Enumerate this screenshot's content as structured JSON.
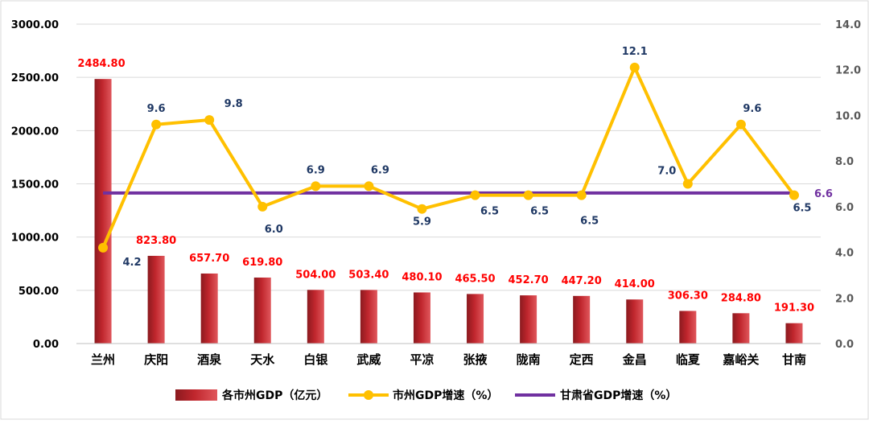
{
  "chart_data": {
    "type": "bar",
    "categories": [
      "兰州",
      "庆阳",
      "酒泉",
      "天水",
      "白银",
      "武威",
      "平凉",
      "张掖",
      "陇南",
      "定西",
      "金昌",
      "临夏",
      "嘉峪关",
      "甘南"
    ],
    "series": [
      {
        "name": "各市州GDP（亿元）",
        "type": "bar",
        "axis": "left",
        "values": [
          2484.8,
          823.8,
          657.7,
          619.8,
          504.0,
          503.4,
          480.1,
          465.5,
          452.7,
          447.2,
          414.0,
          306.3,
          284.8,
          191.3
        ],
        "labels": [
          "2484.80",
          "823.80",
          "657.70",
          "619.80",
          "504.00",
          "503.40",
          "480.10",
          "465.50",
          "452.70",
          "447.20",
          "414.00",
          "306.30",
          "284.80",
          "191.30"
        ],
        "color": "#c0262d"
      },
      {
        "name": "市州GDP增速（%）",
        "type": "line",
        "axis": "right",
        "values": [
          4.2,
          9.6,
          9.8,
          6.0,
          6.9,
          6.9,
          5.9,
          6.5,
          6.5,
          6.5,
          12.1,
          7.0,
          9.6,
          6.5
        ],
        "labels": [
          "4.2",
          "9.6",
          "9.8",
          "6.0",
          "6.9",
          "6.9",
          "5.9",
          "6.5",
          "6.5",
          "6.5",
          "12.1",
          "7.0",
          "9.6",
          "6.5"
        ],
        "color": "#ffc000"
      },
      {
        "name": "甘肃省GDP增速（%）",
        "type": "line",
        "axis": "right",
        "values": [
          6.6,
          6.6,
          6.6,
          6.6,
          6.6,
          6.6,
          6.6,
          6.6,
          6.6,
          6.6,
          6.6,
          6.6,
          6.6,
          6.6
        ],
        "end_label": "6.6",
        "color": "#7030a0"
      }
    ],
    "y_left": {
      "ylim": [
        0,
        3000
      ],
      "ticks": [
        "0.00",
        "500.00",
        "1000.00",
        "1500.00",
        "2000.00",
        "2500.00",
        "3000.00"
      ]
    },
    "y_right": {
      "ylim": [
        0,
        14
      ],
      "ticks": [
        "0.0",
        "2.0",
        "4.0",
        "6.0",
        "8.0",
        "10.0",
        "12.0",
        "14.0"
      ]
    },
    "grid": "horizontal",
    "legend_position": "bottom",
    "bar_label_color": "#ff0000",
    "line_label_color": "#1f3864"
  }
}
